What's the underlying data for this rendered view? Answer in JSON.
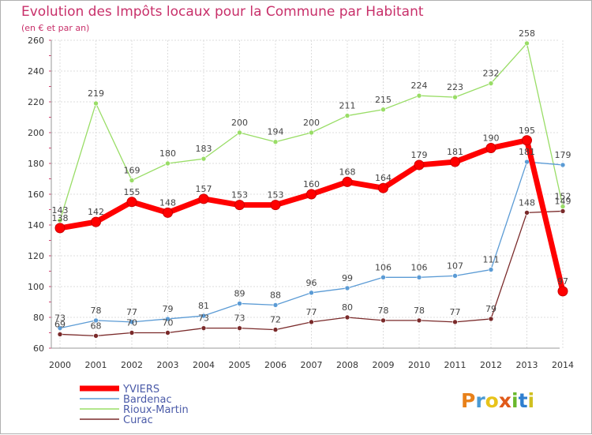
{
  "header": {
    "title": "Evolution des Impôts locaux pour la Commune par Habitant",
    "subtitle": "(en € et par an)"
  },
  "logo": {
    "text": "Proxiti",
    "colors": [
      "#e8811a",
      "#4a9ad4",
      "#e8c31a",
      "#e05a1a",
      "#6ab82c",
      "#2f7fd0",
      "#d0c020"
    ]
  },
  "chart_data": {
    "type": "line",
    "title": "Evolution des Impôts locaux pour la Commune par Habitant",
    "subtitle": "(en € et par an)",
    "xlabel": "",
    "ylabel": "",
    "x": [
      2000,
      2001,
      2002,
      2003,
      2004,
      2005,
      2006,
      2007,
      2008,
      2009,
      2010,
      2011,
      2012,
      2013,
      2014
    ],
    "ylim": [
      60,
      260
    ],
    "yticks": [
      60,
      80,
      100,
      120,
      140,
      160,
      180,
      200,
      220,
      240,
      260
    ],
    "grid": true,
    "legend_position": "bottom-left",
    "series": [
      {
        "name": "YVIERS",
        "color": "#ff0000",
        "bold": true,
        "values": [
          138,
          142,
          155,
          148,
          157,
          153,
          153,
          160,
          168,
          164,
          179,
          181,
          190,
          195,
          97
        ]
      },
      {
        "name": "Bardenac",
        "color": "#5b9bd5",
        "bold": false,
        "values": [
          73,
          78,
          77,
          79,
          81,
          89,
          88,
          96,
          99,
          106,
          106,
          107,
          111,
          181,
          179
        ]
      },
      {
        "name": "Rioux-Martin",
        "color": "#99dd66",
        "bold": false,
        "values": [
          143,
          219,
          169,
          180,
          183,
          200,
          194,
          200,
          211,
          215,
          224,
          223,
          232,
          258,
          152
        ]
      },
      {
        "name": "Curac",
        "color": "#7a2a2a",
        "bold": false,
        "values": [
          69,
          68,
          70,
          70,
          73,
          73,
          72,
          77,
          80,
          78,
          78,
          77,
          79,
          148,
          149
        ]
      }
    ]
  }
}
